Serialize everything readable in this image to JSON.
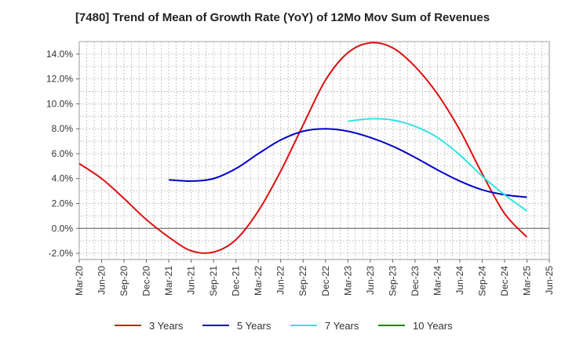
{
  "chart_data": {
    "type": "line",
    "title": "[7480]  Trend of Mean of Growth Rate (YoY) of 12Mo Mov Sum of Revenues",
    "xlabel": "",
    "ylabel": "",
    "ylim": [
      -2.5,
      15.0
    ],
    "yticks": [
      -2.0,
      0.0,
      2.0,
      4.0,
      6.0,
      8.0,
      10.0,
      12.0,
      14.0
    ],
    "ytick_labels": [
      "-2.0%",
      "0.0%",
      "2.0%",
      "4.0%",
      "6.0%",
      "8.0%",
      "10.0%",
      "12.0%",
      "14.0%"
    ],
    "x_categories": [
      "Mar-20",
      "Jun-20",
      "Sep-20",
      "Dec-20",
      "Mar-21",
      "Jun-21",
      "Sep-21",
      "Dec-21",
      "Mar-22",
      "Jun-22",
      "Sep-22",
      "Dec-22",
      "Mar-23",
      "Jun-23",
      "Sep-23",
      "Dec-23",
      "Mar-24",
      "Jun-24",
      "Sep-24",
      "Dec-24",
      "Mar-25",
      "Jun-25"
    ],
    "grid": true,
    "legend_position": "bottom",
    "series": [
      {
        "name": "3 Years",
        "color": "#dd1111",
        "start_index": 0,
        "values": [
          5.2,
          4.0,
          2.4,
          0.7,
          -0.7,
          -1.8,
          -1.9,
          -0.9,
          1.4,
          4.6,
          8.3,
          11.9,
          14.1,
          14.9,
          14.5,
          13.0,
          10.8,
          7.9,
          4.4,
          1.2,
          -0.7
        ]
      },
      {
        "name": "5 Years",
        "color": "#0000cc",
        "start_index": 4,
        "values": [
          3.9,
          3.8,
          4.0,
          4.8,
          6.0,
          7.1,
          7.8,
          8.0,
          7.8,
          7.3,
          6.6,
          5.7,
          4.7,
          3.8,
          3.1,
          2.7,
          2.5
        ]
      },
      {
        "name": "7 Years",
        "color": "#33e3e3",
        "start_index": 12,
        "values": [
          8.6,
          8.8,
          8.7,
          8.2,
          7.3,
          5.9,
          4.2,
          2.7,
          1.4
        ]
      },
      {
        "name": "10 Years",
        "color": "#118811",
        "start_index": 0,
        "values": []
      }
    ]
  }
}
